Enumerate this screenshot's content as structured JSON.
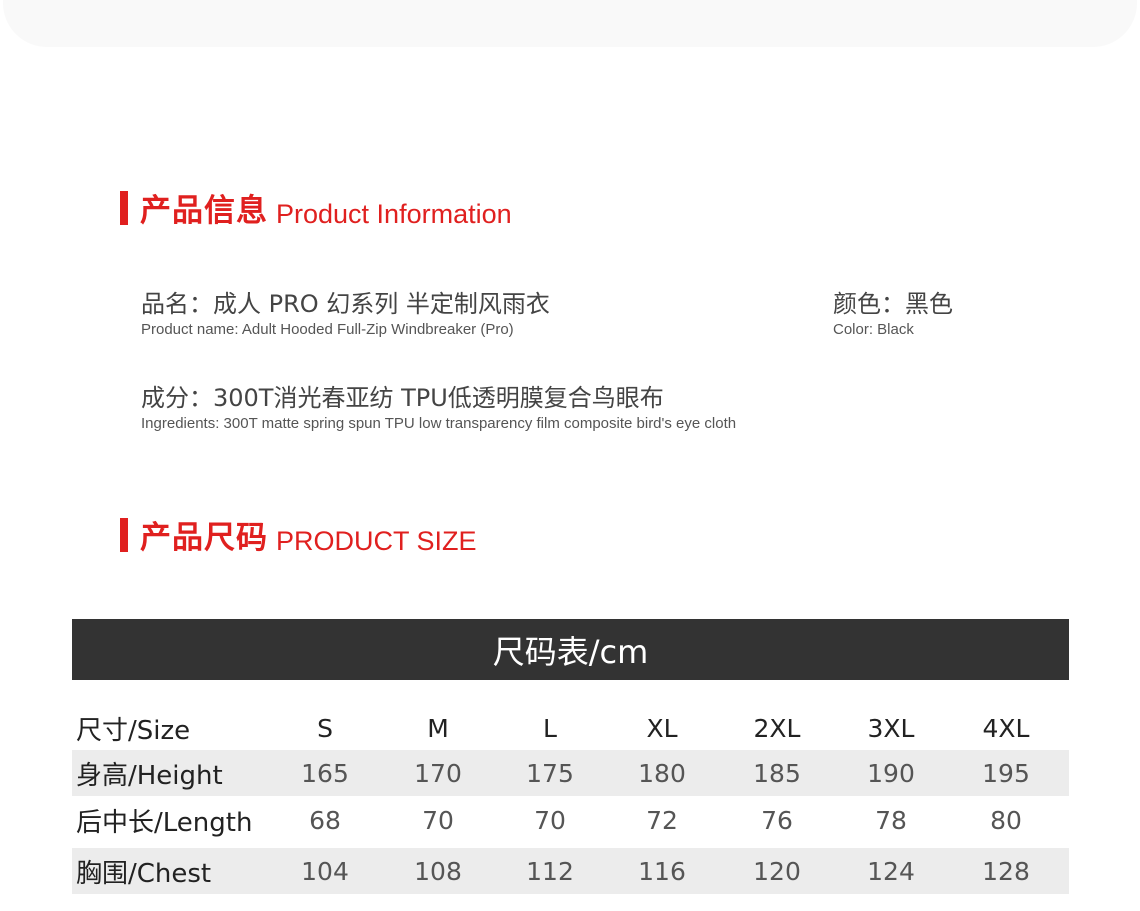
{
  "info_section": {
    "title_zh": "产品信息",
    "title_en": "Product Information"
  },
  "product_name": {
    "zh": "品名：成人 PRO 幻系列 半定制风雨衣",
    "en": "Product name: Adult Hooded Full-Zip Windbreaker (Pro)"
  },
  "color": {
    "zh": "颜色：黑色",
    "en": "Color: Black"
  },
  "ingredients": {
    "zh": "成分：300T消光春亚纺 TPU低透明膜复合鸟眼布",
    "en": "Ingredients: 300T matte spring spun TPU low transparency film composite bird's eye cloth"
  },
  "size_section": {
    "title_zh": "产品尺码",
    "title_en": "PRODUCT SIZE"
  },
  "size_table": {
    "title": "尺码表/cm",
    "header": {
      "label": "尺寸/Size",
      "cells": [
        "S",
        "M",
        "L",
        "XL",
        "2XL",
        "3XL",
        "4XL"
      ]
    },
    "rows": [
      {
        "label": "身高/Height",
        "cells": [
          "165",
          "170",
          "175",
          "180",
          "185",
          "190",
          "195"
        ]
      },
      {
        "label": "后中长/Length",
        "cells": [
          "68",
          "70",
          "70",
          "72",
          "76",
          "78",
          "80"
        ]
      },
      {
        "label": "胸围/Chest",
        "cells": [
          "104",
          "108",
          "112",
          "116",
          "120",
          "124",
          "128"
        ]
      }
    ]
  },
  "colors": {
    "accent": "#e0201f",
    "table_header_bg": "#333333",
    "stripe": "#ececec"
  }
}
